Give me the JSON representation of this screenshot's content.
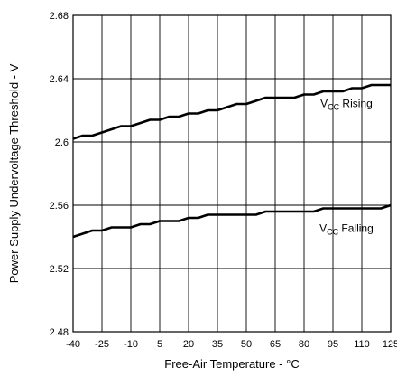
{
  "chart_data": {
    "type": "line",
    "xlabel": "Free-Air Temperature - °C",
    "ylabel": "Power Supply Undervoltage Threshold - V",
    "xlim": [
      -40,
      125
    ],
    "ylim": [
      2.48,
      2.68
    ],
    "x_tick_labels": [
      "-40",
      "-25",
      "-10",
      "5",
      "20",
      "35",
      "50",
      "65",
      "80",
      "95",
      "110",
      "125"
    ],
    "x_tick_values": [
      -40,
      -25,
      -10,
      5,
      20,
      35,
      50,
      65,
      80,
      95,
      110,
      125
    ],
    "y_tick_labels": [
      "2.48",
      "2.52",
      "2.56",
      "2.6",
      "2.64",
      "2.68"
    ],
    "y_tick_values": [
      2.48,
      2.52,
      2.56,
      2.6,
      2.64,
      2.68
    ],
    "grid": "vertical",
    "series": [
      {
        "name_main": "V",
        "name_sub": "CC",
        "name_rest": " Rising",
        "x": [
          -40,
          -35,
          -30,
          -25,
          -20,
          -15,
          -10,
          -5,
          0,
          5,
          10,
          15,
          20,
          25,
          30,
          35,
          40,
          45,
          50,
          55,
          60,
          65,
          70,
          75,
          80,
          85,
          90,
          95,
          100,
          105,
          110,
          115,
          120,
          125
        ],
        "y": [
          2.602,
          2.604,
          2.604,
          2.606,
          2.608,
          2.61,
          2.61,
          2.612,
          2.614,
          2.614,
          2.616,
          2.616,
          2.618,
          2.618,
          2.62,
          2.62,
          2.622,
          2.624,
          2.624,
          2.626,
          2.628,
          2.628,
          2.628,
          2.628,
          2.63,
          2.63,
          2.632,
          2.632,
          2.632,
          2.634,
          2.634,
          2.636,
          2.636,
          2.636
        ]
      },
      {
        "name_main": "V",
        "name_sub": "CC",
        "name_rest": " Falling",
        "x": [
          -40,
          -35,
          -30,
          -25,
          -20,
          -15,
          -10,
          -5,
          0,
          5,
          10,
          15,
          20,
          25,
          30,
          35,
          40,
          45,
          50,
          55,
          60,
          65,
          70,
          75,
          80,
          85,
          90,
          95,
          100,
          105,
          110,
          115,
          120,
          125
        ],
        "y": [
          2.54,
          2.542,
          2.544,
          2.544,
          2.546,
          2.546,
          2.546,
          2.548,
          2.548,
          2.55,
          2.55,
          2.55,
          2.552,
          2.552,
          2.554,
          2.554,
          2.554,
          2.554,
          2.554,
          2.554,
          2.556,
          2.556,
          2.556,
          2.556,
          2.556,
          2.556,
          2.558,
          2.558,
          2.558,
          2.558,
          2.558,
          2.558,
          2.558,
          2.56
        ]
      }
    ],
    "annotations": [
      {
        "series": 0,
        "at_x": 102,
        "at_y": 2.625
      },
      {
        "series": 1,
        "at_x": 102,
        "at_y": 2.546
      }
    ]
  }
}
